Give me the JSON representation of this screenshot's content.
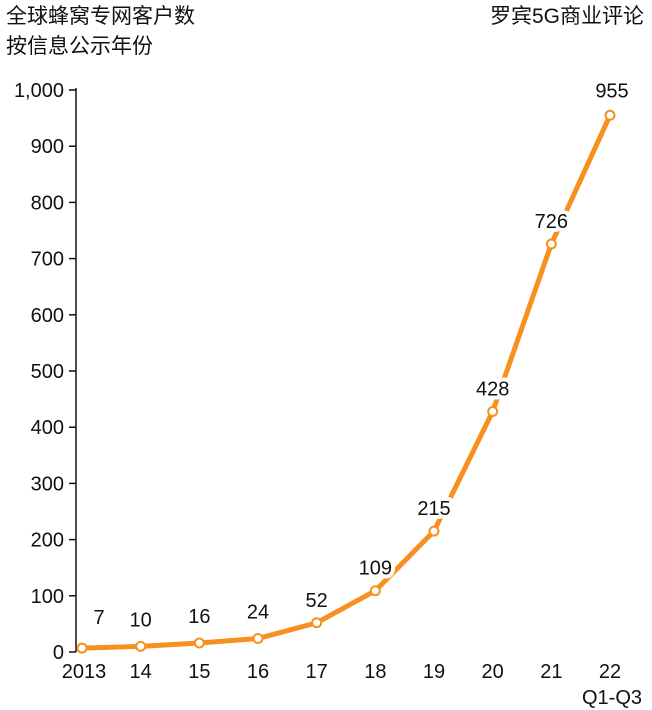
{
  "header": {
    "title_line1": "全球蜂窝专网客户数",
    "title_line2": "按信息公示年份",
    "source": "罗宾5G商业评论"
  },
  "chart_data": {
    "type": "line",
    "categories": [
      "2013",
      "14",
      "15",
      "16",
      "17",
      "18",
      "19",
      "20",
      "21",
      "22"
    ],
    "category_sublabels": [
      "",
      "",
      "",
      "",
      "",
      "",
      "",
      "",
      "",
      "Q1-Q3"
    ],
    "series": [
      {
        "values": [
          7,
          10,
          16,
          24,
          52,
          109,
          215,
          428,
          726,
          955
        ]
      }
    ],
    "data_labels": [
      "7",
      "10",
      "16",
      "24",
      "52",
      "109",
      "215",
      "428",
      "726",
      "955"
    ],
    "yticks": [
      "0",
      "100",
      "200",
      "300",
      "400",
      "500",
      "600",
      "700",
      "800",
      "900",
      "1,000"
    ],
    "ylim": [
      0,
      1000
    ],
    "grid": false,
    "line_color": "#F7901E",
    "marker_fill": "#ffffff"
  }
}
